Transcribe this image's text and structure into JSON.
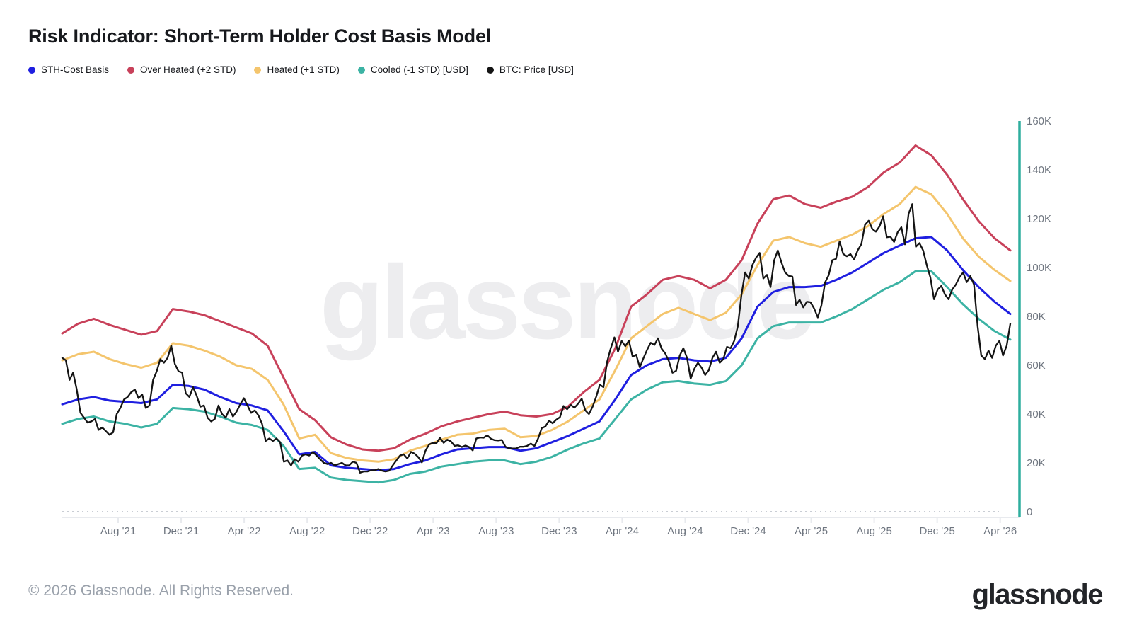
{
  "header": {
    "title": "Risk Indicator: Short-Term Holder Cost Basis Model"
  },
  "legend": [
    {
      "label": "STH-Cost Basis",
      "color": "#1f1fe0"
    },
    {
      "label": "Over Heated (+2 STD)",
      "color": "#c8415a"
    },
    {
      "label": "Heated (+1 STD)",
      "color": "#f4c56d"
    },
    {
      "label": "Cooled (-1 STD) [USD]",
      "color": "#3cb3a4"
    },
    {
      "label": "BTC: Price [USD]",
      "color": "#141414"
    }
  ],
  "watermark": "glassnode",
  "footer": {
    "copyright": "© 2026 Glassnode. All Rights Reserved.",
    "logo": "glassnode"
  },
  "chart_data": {
    "type": "line",
    "title": "Risk Indicator: Short-Term Holder Cost Basis Model",
    "x_span": [
      "2021-04-15",
      "2026-04-15"
    ],
    "x_tick_labels": [
      "Aug '21",
      "Dec '21",
      "Apr '22",
      "Aug '22",
      "Dec '22",
      "Apr '23",
      "Aug '23",
      "Dec '23",
      "Apr '24",
      "Aug '24",
      "Dec '24",
      "Apr '25",
      "Aug '25",
      "Dec '25",
      "Apr '26"
    ],
    "y_tick_labels": [
      "0",
      "20K",
      "40K",
      "60K",
      "80K",
      "100K",
      "120K",
      "140K",
      "160K"
    ],
    "ylim_thousand_usd": [
      0,
      160
    ],
    "grid": false,
    "zero_line": "dotted",
    "legend_position": "top-left",
    "axis_color": "#2fae9e",
    "values_unit": "thousand USD",
    "series": [
      {
        "name": "Over Heated (+2 STD)",
        "color": "#c8415a",
        "cadence": "monthly",
        "width": 3,
        "values": [
          73,
          77,
          79,
          76.5,
          74.5,
          72.5,
          74,
          83,
          82,
          80.5,
          78,
          75.5,
          73,
          68,
          55,
          42,
          37.5,
          30.5,
          27.5,
          25.5,
          25,
          26,
          29.5,
          32,
          35,
          37,
          38.5,
          40,
          41,
          39.5,
          39,
          40,
          43,
          49,
          54,
          67,
          84,
          89,
          95,
          96.5,
          95,
          91.5,
          95,
          103,
          118,
          128,
          129.5,
          126,
          124.5,
          127,
          129,
          133,
          139,
          143,
          150,
          146,
          138,
          128,
          119,
          112,
          107
        ]
      },
      {
        "name": "Heated (+1 STD)",
        "color": "#f4c56d",
        "cadence": "monthly",
        "width": 3,
        "values": [
          62,
          64.5,
          65.5,
          62.5,
          60.5,
          59,
          61,
          69,
          68,
          66,
          63.5,
          60,
          58.5,
          54,
          44,
          30,
          31.5,
          24,
          22,
          21,
          20.5,
          21.5,
          25,
          27,
          29.5,
          31.5,
          32,
          33.5,
          34,
          30.5,
          31,
          33.5,
          37,
          41.5,
          46,
          58,
          71,
          76,
          81,
          83.5,
          81,
          78.5,
          81.5,
          89,
          101,
          111,
          112.5,
          110,
          108.5,
          111,
          113.5,
          117,
          122,
          126,
          133,
          130,
          122,
          112,
          104.5,
          99,
          94.5
        ]
      },
      {
        "name": "Cooled (-1 STD) [USD]",
        "color": "#3cb3a4",
        "cadence": "monthly",
        "width": 3,
        "values": [
          36,
          38,
          39,
          37,
          36,
          34.5,
          36,
          42.5,
          42,
          41,
          39,
          36.5,
          35.5,
          33.5,
          27,
          17.5,
          18,
          14,
          13,
          12.5,
          12,
          13,
          15.5,
          16.5,
          18.5,
          19.5,
          20.5,
          21,
          21,
          19.5,
          20.5,
          22.5,
          25.5,
          28,
          30,
          38,
          46,
          50,
          53,
          53.5,
          52.5,
          52,
          53.5,
          60,
          71,
          76,
          77.5,
          77.5,
          77.5,
          80,
          83,
          87,
          91,
          94,
          98.5,
          98.5,
          92,
          85,
          79,
          74,
          70.5
        ]
      },
      {
        "name": "STH-Cost Basis",
        "color": "#1f1fe0",
        "cadence": "monthly",
        "width": 3,
        "values": [
          44,
          46,
          47,
          45.5,
          45,
          44.5,
          46,
          52,
          51.5,
          50,
          47,
          44.5,
          43.5,
          41.5,
          33,
          23.5,
          24.5,
          19,
          18,
          17.5,
          17,
          17.5,
          19.5,
          21,
          23.5,
          25.5,
          26,
          26.5,
          26.5,
          25,
          26,
          28.5,
          31,
          34,
          37,
          46,
          56,
          60,
          62.5,
          63,
          62,
          61.5,
          63,
          71,
          84,
          90,
          92,
          92,
          92.5,
          95,
          98,
          102,
          106,
          109,
          112,
          112.5,
          107,
          99,
          92,
          86,
          81
        ]
      },
      {
        "name": "BTC: Price [USD]",
        "color": "#141414",
        "cadence": "weekly",
        "width": 2.3,
        "values": [
          63,
          62,
          54,
          57,
          50,
          40.5,
          38.5,
          36.5,
          37,
          38,
          33.5,
          34.5,
          33,
          31.5,
          32.5,
          40,
          42.5,
          46,
          47,
          49,
          50,
          46.5,
          48,
          42.5,
          43.5,
          54,
          57.5,
          62.5,
          61,
          63,
          68,
          60.5,
          57.5,
          57,
          48.5,
          47,
          51,
          47.5,
          43,
          43.5,
          38.5,
          37,
          38,
          43.5,
          40,
          38.5,
          42,
          39,
          41,
          44,
          46.5,
          43.5,
          40.5,
          41.5,
          39.5,
          36,
          29,
          30,
          29,
          30,
          28.5,
          20.5,
          21,
          19,
          21.5,
          20.5,
          23,
          23.5,
          23,
          24.5,
          23,
          21.5,
          20,
          19.5,
          20,
          19,
          19.5,
          20,
          19,
          19,
          20.5,
          20,
          16,
          16.5,
          16.5,
          17,
          17,
          17.5,
          16.8,
          16.5,
          16.8,
          19,
          21,
          23,
          23.5,
          21.8,
          24.5,
          23.8,
          22.4,
          20.2,
          25,
          27.5,
          28.2,
          28,
          30.3,
          28.2,
          29.5,
          28.8,
          27,
          27.2,
          26.5,
          27.1,
          26.5,
          25.1,
          30,
          30.4,
          30.3,
          31.3,
          29.9,
          29.3,
          29.2,
          29.4,
          26.6,
          26,
          25.9,
          25.9,
          26.6,
          26.6,
          27,
          27.9,
          26.9,
          30,
          34.2,
          34.9,
          37.3,
          36.2,
          37.7,
          38.7,
          43.3,
          42,
          43.7,
          42.6,
          44.2,
          46.3,
          41.5,
          40,
          43,
          47.1,
          52,
          51,
          61.4,
          66.9,
          71.4,
          65.5,
          69.9,
          67.8,
          70.1,
          63.5,
          64.3,
          59.1,
          62.9,
          66.3,
          69.2,
          68.3,
          71,
          66.8,
          64.8,
          61.7,
          56.9,
          57.7,
          64,
          67,
          63,
          54.5,
          58.5,
          61,
          59,
          56,
          58,
          63,
          65.5,
          61,
          62.5,
          67.5,
          67,
          70,
          76,
          89,
          98,
          95.5,
          101,
          104,
          106,
          95.5,
          97,
          92,
          103,
          107,
          102,
          98,
          96.6,
          96.3,
          84.7,
          86.8,
          83.7,
          86,
          85.8,
          83.2,
          79.6,
          84.5,
          93.9,
          96.9,
          103,
          103.5,
          110.7,
          105.6,
          104.6,
          105.5,
          103.3,
          107.1,
          109.6,
          117.5,
          119.2,
          115.8,
          114.7,
          116.9,
          121,
          112.4,
          112.6,
          110.5,
          114.5,
          116.5,
          109.5,
          122,
          126,
          108.5,
          110,
          107,
          101,
          96,
          87,
          91,
          92.5,
          89,
          87,
          91,
          93,
          96,
          98,
          94,
          96.5,
          93,
          76,
          64,
          62.5,
          66,
          63,
          68,
          70,
          64,
          68,
          77
        ]
      }
    ]
  }
}
